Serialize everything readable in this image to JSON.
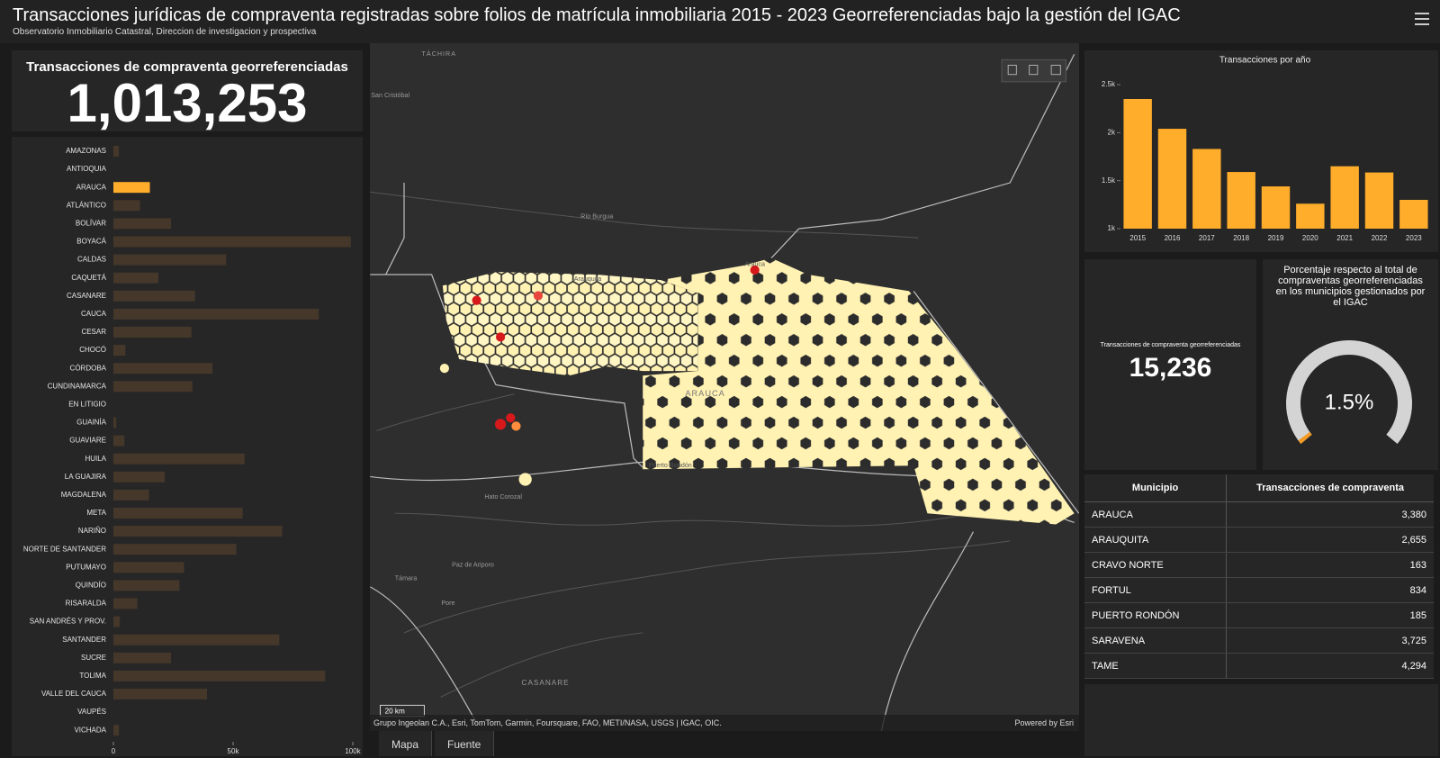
{
  "header": {
    "title": "Transacciones jurídicas de compraventa registradas sobre folios de matrícula inmobiliaria 2015 - 2023 Georreferenciadas bajo la gestión del IGAC",
    "subtitle": "Observatorio Inmobiliario Catastral, Direccion de investigacion y prospectiva"
  },
  "indicator_total": {
    "title": "Transacciones de compraventa georreferenciadas",
    "value": "1,013,253"
  },
  "indicator_selected": {
    "title": "Transacciones de compraventa georreferenciadas",
    "value": "15,236"
  },
  "chart_data": [
    {
      "type": "bar",
      "orientation": "horizontal",
      "categories": [
        "AMAZONAS",
        "ANTIOQUIA",
        "ARAUCA",
        "ATLÁNTICO",
        "BOLÍVAR",
        "BOYACÁ",
        "CALDAS",
        "CAQUETÁ",
        "CASANARE",
        "CAUCA",
        "CESAR",
        "CHOCÓ",
        "CÓRDOBA",
        "CUNDINAMARCA",
        "EN LITIGIO",
        "GUAINÍA",
        "GUAVIARE",
        "HUILA",
        "LA GUAJIRA",
        "MAGDALENA",
        "META",
        "NARIÑO",
        "NORTE DE SANTANDER",
        "PUTUMAYO",
        "QUINDÍO",
        "RISARALDA",
        "SAN ANDRÉS Y PROV.",
        "SANTANDER",
        "SUCRE",
        "TOLIMA",
        "VALLE DEL CAUCA",
        "VAUPÉS",
        "VICHADA"
      ],
      "values": [
        2300,
        0,
        15236,
        11100,
        24100,
        99200,
        47100,
        18800,
        34100,
        85800,
        32600,
        5000,
        41400,
        33000,
        0,
        1200,
        4600,
        54800,
        21500,
        14900,
        54000,
        70500,
        51300,
        29500,
        27600,
        10000,
        2700,
        69300,
        24100,
        88500,
        39100,
        0,
        2300
      ],
      "color": "#45372a",
      "highlight_color": "#ffad2a",
      "highlight_category": "ARAUCA",
      "xlim": [
        0,
        100000
      ],
      "xticks": [
        0,
        {
          "value": 50000,
          "label": "50k"
        },
        {
          "value": 100000,
          "label": "100k"
        }
      ]
    },
    {
      "type": "bar",
      "title": "Transacciones por año",
      "categories": [
        "2015",
        "2016",
        "2017",
        "2018",
        "2019",
        "2020",
        "2021",
        "2022",
        "2023"
      ],
      "values": [
        2350,
        2040,
        1830,
        1590,
        1440,
        1260,
        1650,
        1585,
        1300
      ],
      "color": "#ffad2a",
      "ylim": [
        1000,
        2500
      ],
      "yticks": [
        {
          "value": 1000,
          "label": "1k"
        },
        {
          "value": 1500,
          "label": "1.5k"
        },
        {
          "value": 2000,
          "label": "2k"
        },
        {
          "value": 2500,
          "label": "2.5k"
        }
      ]
    },
    {
      "type": "gauge",
      "title": "Porcentaje respecto al total de compraventas georreferenciadas en los municipios gestionados por el IGAC",
      "values": [
        1.5
      ],
      "value_labels": [
        "1.5%"
      ],
      "ylim": [
        0,
        100
      ],
      "color": "#f59a23",
      "track_color": "#d4d4d4"
    }
  ],
  "table": {
    "columns": [
      "Municipio",
      "Transacciones de compraventa"
    ],
    "rows": [
      [
        "ARAUCA",
        "3,380"
      ],
      [
        "ARAUQUITA",
        "2,655"
      ],
      [
        "CRAVO NORTE",
        "163"
      ],
      [
        "FORTUL",
        "834"
      ],
      [
        "PUERTO RONDÓN",
        "185"
      ],
      [
        "SARAVENA",
        "3,725"
      ],
      [
        "TAME",
        "4,294"
      ]
    ]
  },
  "map": {
    "labels": [
      "TÁCHIRA",
      "San Cristóbal",
      "Río Burgua",
      "Arauquita",
      "Arauca",
      "ARAUCA",
      "Puerto Rondón",
      "Hato Corozal",
      "Paz de Ariporo",
      "Támara",
      "Pore",
      "CASANARE"
    ],
    "scale": "20 km",
    "attribution": "Grupo Ingeolan C.A., Esri, TomTom, Garmin, Foursquare, FAO, METI/NASA, USGS | IGAC, OIC.",
    "powered": "Powered by Esri",
    "tabs": [
      "Mapa",
      "Fuente"
    ]
  }
}
